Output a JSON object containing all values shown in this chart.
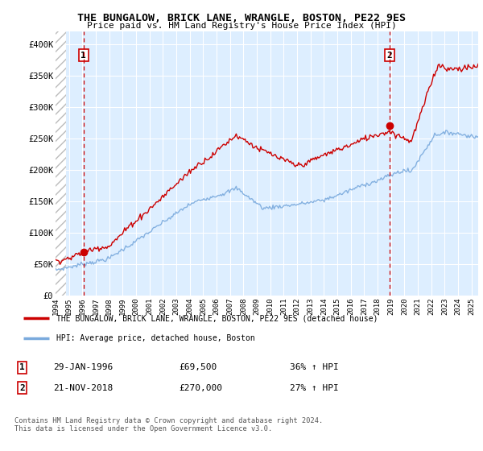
{
  "title": "THE BUNGALOW, BRICK LANE, WRANGLE, BOSTON, PE22 9ES",
  "subtitle": "Price paid vs. HM Land Registry's House Price Index (HPI)",
  "ylim": [
    0,
    420000
  ],
  "yticks": [
    0,
    50000,
    100000,
    150000,
    200000,
    250000,
    300000,
    350000,
    400000
  ],
  "ytick_labels": [
    "£0",
    "£50K",
    "£100K",
    "£150K",
    "£200K",
    "£250K",
    "£300K",
    "£350K",
    "£400K"
  ],
  "xlim_start": 1994.0,
  "xlim_end": 2025.5,
  "xticks": [
    1994,
    1995,
    1996,
    1997,
    1998,
    1999,
    2000,
    2001,
    2002,
    2003,
    2004,
    2005,
    2006,
    2007,
    2008,
    2009,
    2010,
    2011,
    2012,
    2013,
    2014,
    2015,
    2016,
    2017,
    2018,
    2019,
    2020,
    2021,
    2022,
    2023,
    2024,
    2025
  ],
  "sale1_date": 1996.08,
  "sale1_price": 69500,
  "sale1_label": "1",
  "sale2_date": 2018.9,
  "sale2_price": 270000,
  "sale2_label": "2",
  "hpi_color": "#7aaadd",
  "price_color": "#cc0000",
  "bg_color": "#ddeeff",
  "legend_line1": "THE BUNGALOW, BRICK LANE, WRANGLE, BOSTON, PE22 9ES (detached house)",
  "legend_line2": "HPI: Average price, detached house, Boston",
  "annotation1_date": "29-JAN-1996",
  "annotation1_price": "£69,500",
  "annotation1_hpi": "36% ↑ HPI",
  "annotation2_date": "21-NOV-2018",
  "annotation2_price": "£270,000",
  "annotation2_hpi": "27% ↑ HPI",
  "footer": "Contains HM Land Registry data © Crown copyright and database right 2024.\nThis data is licensed under the Open Government Licence v3.0."
}
